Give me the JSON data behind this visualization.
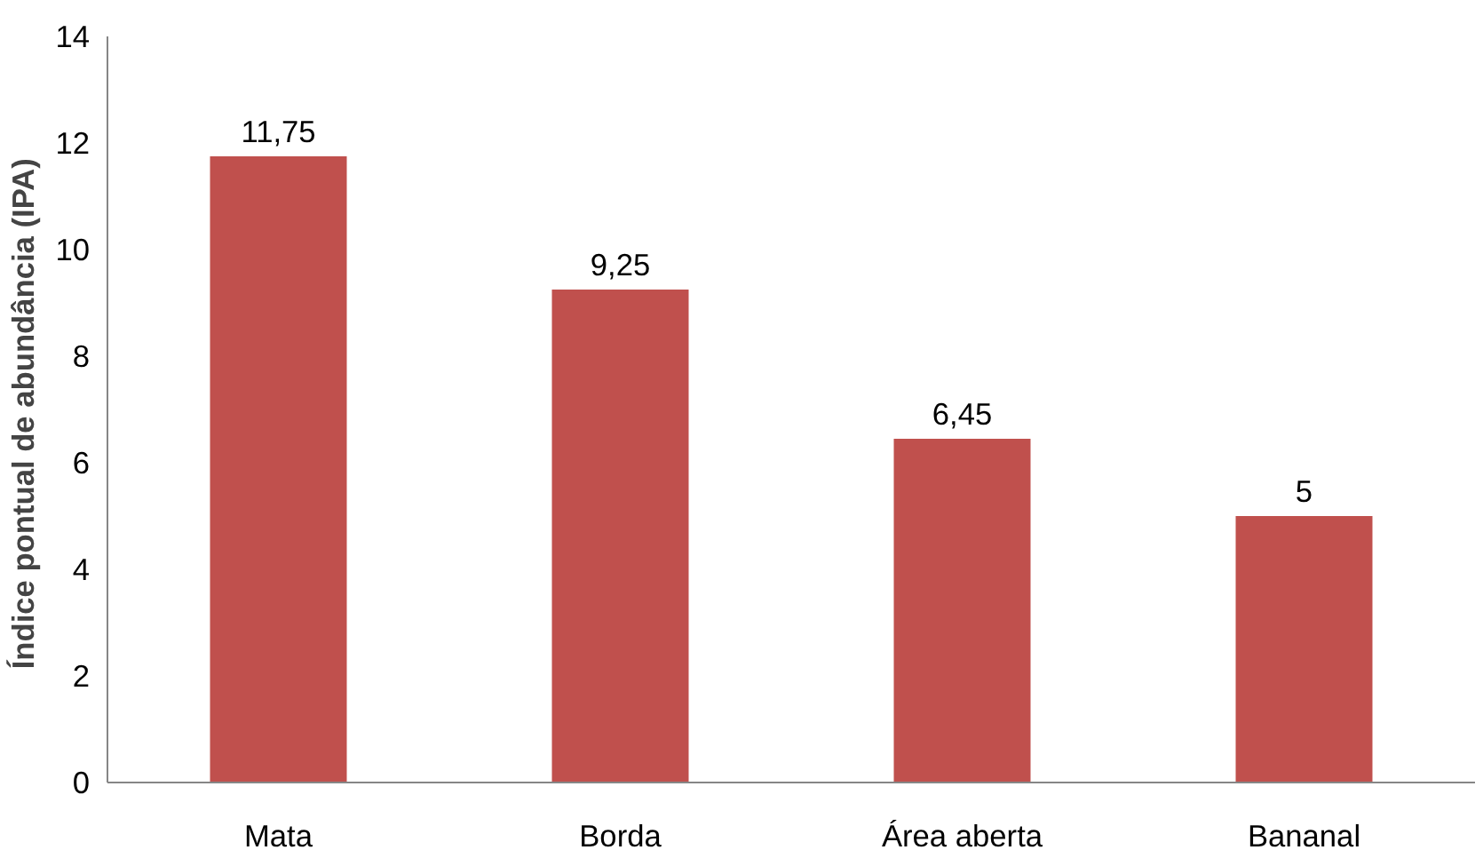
{
  "chart_data": {
    "type": "bar",
    "ylabel": "Índice pontual de abundância  (IPA)",
    "categories": [
      "Mata",
      "Borda",
      "Área aberta",
      "Bananal"
    ],
    "values": [
      11.75,
      9.25,
      6.45,
      5
    ],
    "value_labels": [
      "11,75",
      "9,25",
      "6,45",
      "5"
    ],
    "color": "#c0504d",
    "ylim": [
      0,
      14
    ],
    "yticks": [
      0,
      2,
      4,
      6,
      8,
      10,
      12,
      14
    ],
    "grid": false
  }
}
